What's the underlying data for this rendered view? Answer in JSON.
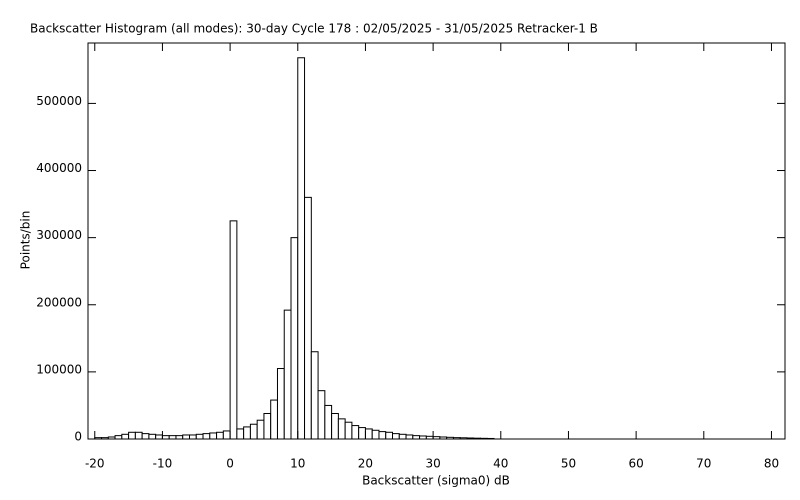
{
  "chart_data": {
    "type": "histogram",
    "title": "Backscatter Histogram (all modes): 30-day Cycle 178 : 02/05/2025 - 31/05/2025 Retracker-1 B",
    "x_label": "Backscatter (sigma0) dB",
    "y_label": "Points/bin",
    "bins": [
      -20,
      -19,
      -18,
      -17,
      -16,
      -15,
      -14,
      -13,
      -12,
      -11,
      -10,
      -9,
      -8,
      -7,
      -6,
      -5,
      -4,
      -3,
      -2,
      -1,
      0,
      1,
      2,
      3,
      4,
      5,
      6,
      7,
      8,
      9,
      10,
      11,
      12,
      13,
      14,
      15,
      16,
      17,
      18,
      19,
      20,
      21,
      22,
      23,
      24,
      25,
      26,
      27,
      28,
      29,
      30,
      31,
      32,
      33,
      34,
      35,
      36,
      37,
      38,
      39
    ],
    "counts": [
      2000,
      2000,
      3000,
      5000,
      7000,
      10000,
      10000,
      8000,
      7000,
      6000,
      5000,
      5000,
      5000,
      6000,
      6000,
      7000,
      8000,
      9000,
      10000,
      12000,
      325000,
      15000,
      18000,
      22000,
      28000,
      38000,
      58000,
      105000,
      192000,
      300000,
      568000,
      360000,
      130000,
      72000,
      50000,
      38000,
      30000,
      25000,
      20000,
      17000,
      15000,
      13000,
      11000,
      10000,
      8000,
      7000,
      6000,
      5000,
      4500,
      4000,
      3500,
      3000,
      2500,
      2000,
      1800,
      1500,
      1200,
      1000,
      800
    ],
    "color": "#ffffff",
    "xlim": [
      -21,
      82
    ],
    "ylim": [
      0,
      590000
    ],
    "xticks": [
      -20,
      -10,
      0,
      10,
      20,
      30,
      40,
      50,
      60,
      70,
      80
    ],
    "yticks": [
      0,
      100000,
      200000,
      300000,
      400000,
      500000
    ]
  }
}
